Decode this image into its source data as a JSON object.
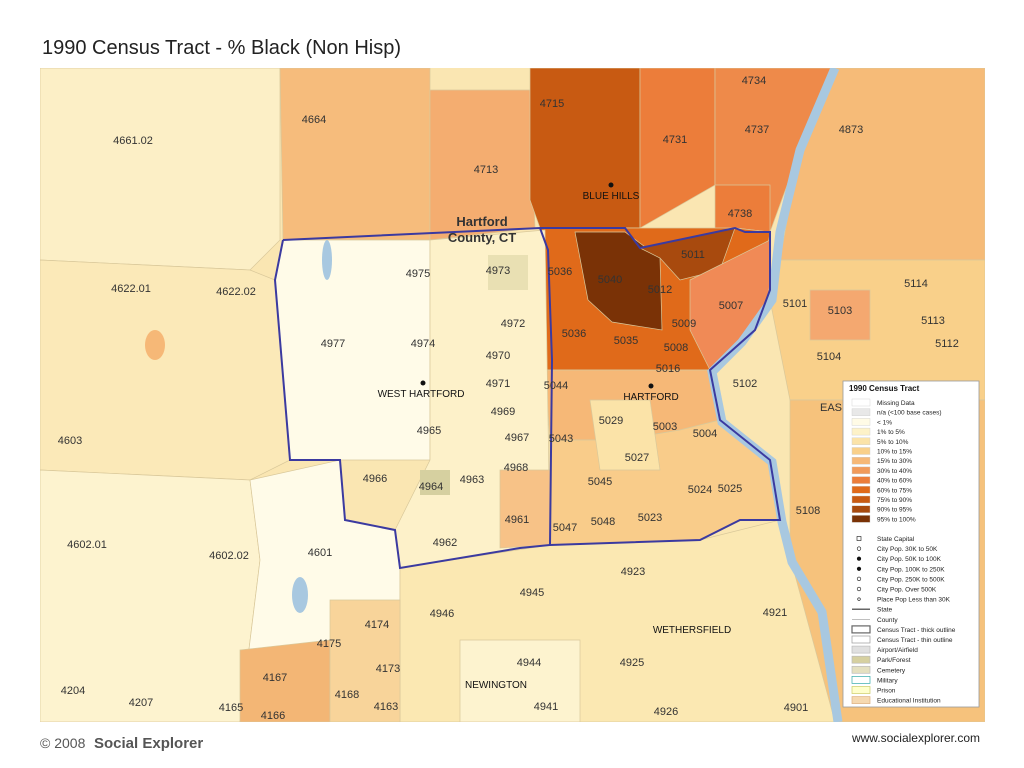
{
  "title": "1990 Census Tract  -  % Black (Non Hisp)",
  "map": {
    "county_label": [
      "Hartford",
      "County, CT"
    ],
    "places": [
      "BLUE HILLS",
      "WEST HARTFORD",
      "HARTFORD",
      "WETHERSFIELD",
      "NEWINGTON"
    ],
    "tracts": [
      "4734",
      "4715",
      "4664",
      "4661.02",
      "4731",
      "4737",
      "4873",
      "4713",
      "4738",
      "5011",
      "4975",
      "4973",
      "5036",
      "5040",
      "4622.01",
      "4622.02",
      "5114",
      "5012",
      "5007",
      "5101",
      "5103",
      "4972",
      "5009",
      "5113",
      "4977",
      "4974",
      "5036",
      "5035",
      "5008",
      "4970",
      "5104",
      "5112",
      "5016",
      "5102",
      "4971",
      "5044",
      "EAS",
      "4969",
      "5029",
      "5003",
      "4965",
      "4967",
      "5043",
      "5004",
      "4603",
      "5027",
      "4968",
      "4966",
      "4964",
      "4963",
      "5045",
      "5024",
      "5025",
      "5108",
      "4961",
      "5047",
      "5048",
      "5023",
      "4602.01",
      "4602.02",
      "4601",
      "4962",
      "4923",
      "4945",
      "4946",
      "4921",
      "4174",
      "4175",
      "4173",
      "4167",
      "4944",
      "4925",
      "4168",
      "4163",
      "4204",
      "4207",
      "4165",
      "4166",
      "4941",
      "4926",
      "4901"
    ]
  },
  "legend": {
    "title": "1990 Census Tract",
    "classes": [
      "Missing Data",
      "n/a (<100 base cases)",
      "< 1%",
      "1% to 5%",
      "5% to 10%",
      "10% to 15%",
      "15% to 30%",
      "30% to 40%",
      "40% to 60%",
      "60% to 75%",
      "75% to 90%",
      "90% to 95%",
      "95% to 100%"
    ],
    "symbols": [
      "State Capital",
      "City Pop. 30K to 50K",
      "City Pop. 50K to 100K",
      "City Pop. 100K to 250K",
      "City Pop. 250K to 500K",
      "City Pop. Over 500K",
      "Place Pop Less than 30K",
      "State",
      "County",
      "Census Tract - thick outline",
      "Census Tract - thin outline",
      "Airport/Airfield",
      "Park/Forest",
      "Cemetery",
      "Military",
      "Prison",
      "Educational Institution"
    ]
  },
  "footer": {
    "copyright": "© 2008",
    "brand": "Social Explorer",
    "url": "www.socialexplorer.com"
  }
}
